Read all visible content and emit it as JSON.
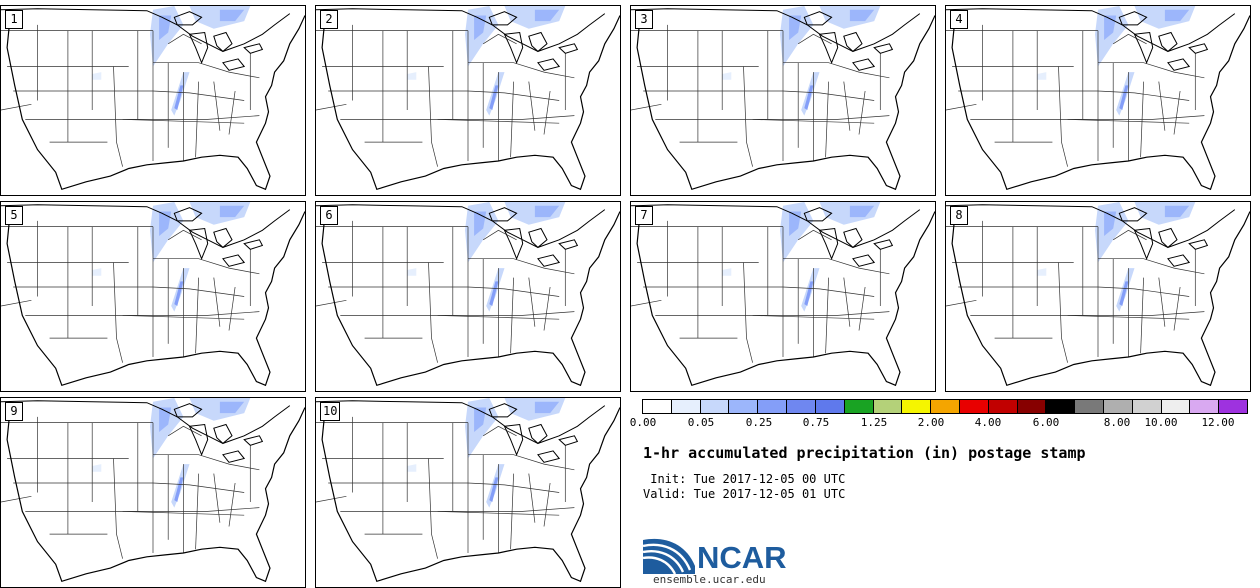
{
  "panels": [
    "1",
    "2",
    "3",
    "4",
    "5",
    "6",
    "7",
    "8",
    "9",
    "10"
  ],
  "colorbar": {
    "colors": [
      "#ffffff",
      "#e6effd",
      "#c7d8fb",
      "#9cb6fb",
      "#849ef8",
      "#6f87f0",
      "#5f79ec",
      "#19a323",
      "#b4d179",
      "#f5f500",
      "#f4a500",
      "#e80000",
      "#c10000",
      "#870000",
      "#000000",
      "#797979",
      "#afafaf",
      "#d1d1d1",
      "#eeeeee",
      "#d9a9f1",
      "#9e32df"
    ],
    "ticks": [
      "0.00",
      "0.05",
      "0.25",
      "0.75",
      "1.25",
      "2.00",
      "4.00",
      "6.00",
      "8.00",
      "10.00",
      "12.00"
    ]
  },
  "title": "1-hr accumulated precipitation (in) postage stamp",
  "init": " Init: Tue 2017-12-05 00 UTC",
  "valid": "Valid: Tue 2017-12-05 01 UTC",
  "logo": {
    "text": "NCAR",
    "url": "ensemble.ucar.edu",
    "color": "#1e5c9e"
  }
}
